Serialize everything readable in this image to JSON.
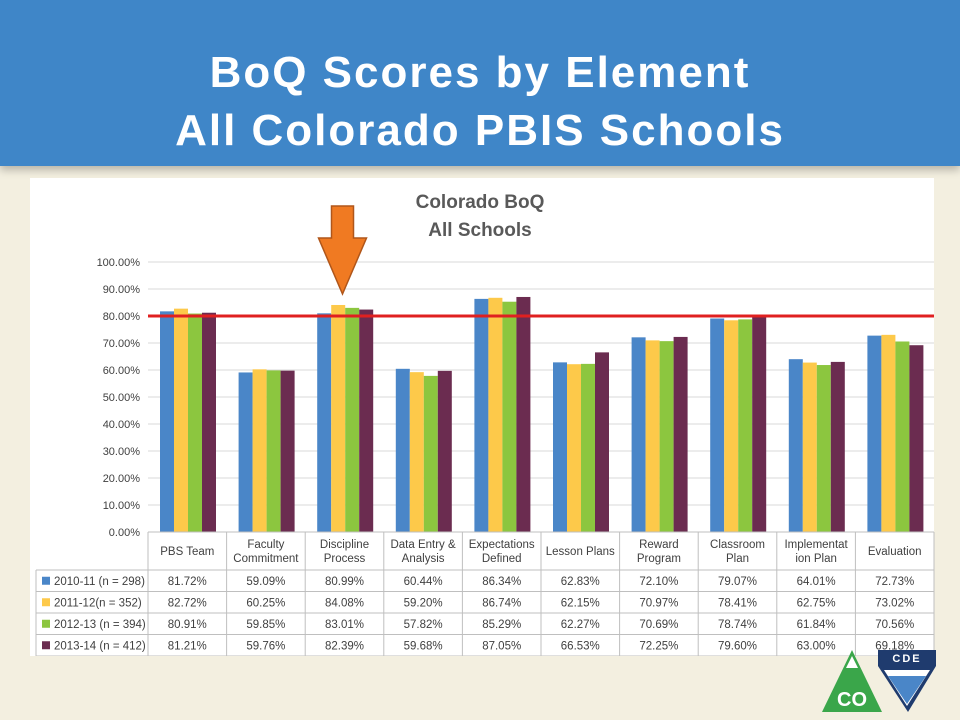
{
  "header": {
    "title_line1": "BoQ Scores by Element",
    "title_line2": "All Colorado PBIS Schools"
  },
  "chart_data": {
    "type": "bar",
    "title_line1": "Colorado BoQ",
    "title_line2": "All Schools",
    "categories": [
      [
        "PBS Team"
      ],
      [
        "Faculty",
        "Commitment"
      ],
      [
        "Discipline",
        "Process"
      ],
      [
        "Data Entry &",
        "Analysis"
      ],
      [
        "Expectations",
        "Defined"
      ],
      [
        "Lesson Plans"
      ],
      [
        "Reward",
        "Program"
      ],
      [
        "Classroom",
        "Plan"
      ],
      [
        "Implementat",
        "ion Plan"
      ],
      [
        "Evaluation"
      ]
    ],
    "series": [
      {
        "name": "2010-11 (n = 298)",
        "color": "#4a86c8",
        "values": [
          81.72,
          59.09,
          80.99,
          60.44,
          86.34,
          62.83,
          72.1,
          79.07,
          64.01,
          72.73
        ],
        "labels": [
          "81.72%",
          "59.09%",
          "80.99%",
          "60.44%",
          "86.34%",
          "62.83%",
          "72.10%",
          "79.07%",
          "64.01%",
          "72.73%"
        ]
      },
      {
        "name": "2011-12(n = 352)",
        "color": "#fdc94a",
        "values": [
          82.72,
          60.25,
          84.08,
          59.2,
          86.74,
          62.15,
          70.97,
          78.41,
          62.75,
          73.02
        ],
        "labels": [
          "82.72%",
          "60.25%",
          "84.08%",
          "59.20%",
          "86.74%",
          "62.15%",
          "70.97%",
          "78.41%",
          "62.75%",
          "73.02%"
        ]
      },
      {
        "name": "2012-13 (n = 394)",
        "color": "#8cc63f",
        "values": [
          80.91,
          59.85,
          83.01,
          57.82,
          85.29,
          62.27,
          70.69,
          78.74,
          61.84,
          70.56
        ],
        "labels": [
          "80.91%",
          "59.85%",
          "83.01%",
          "57.82%",
          "85.29%",
          "62.27%",
          "70.69%",
          "78.74%",
          "61.84%",
          "70.56%"
        ]
      },
      {
        "name": "2013-14 (n = 412)",
        "color": "#6b2c50",
        "values": [
          81.21,
          59.76,
          82.39,
          59.68,
          87.05,
          66.53,
          72.25,
          79.6,
          63.0,
          69.18
        ],
        "labels": [
          "81.21%",
          "59.76%",
          "82.39%",
          "59.68%",
          "87.05%",
          "66.53%",
          "72.25%",
          "79.60%",
          "63.00%",
          "69.18%"
        ]
      }
    ],
    "yticks": [
      "0.00%",
      "10.00%",
      "20.00%",
      "30.00%",
      "40.00%",
      "50.00%",
      "60.00%",
      "70.00%",
      "80.00%",
      "90.00%",
      "100.00%"
    ],
    "ylim": [
      0,
      100
    ],
    "reference_line": {
      "value": 80,
      "color": "#e02020"
    },
    "highlight_arrow": {
      "category_index": 2,
      "color": "#f07a22"
    },
    "grid": true,
    "legend": "data-table"
  },
  "logo": {
    "co_text": "CO",
    "cde_text": "CDE",
    "colors": {
      "green": "#3aa64a",
      "navy": "#1f3b6e"
    }
  },
  "colors": {
    "header": "#3f86c8",
    "background": "#f3efe0",
    "plot_area": "#ffffff"
  }
}
